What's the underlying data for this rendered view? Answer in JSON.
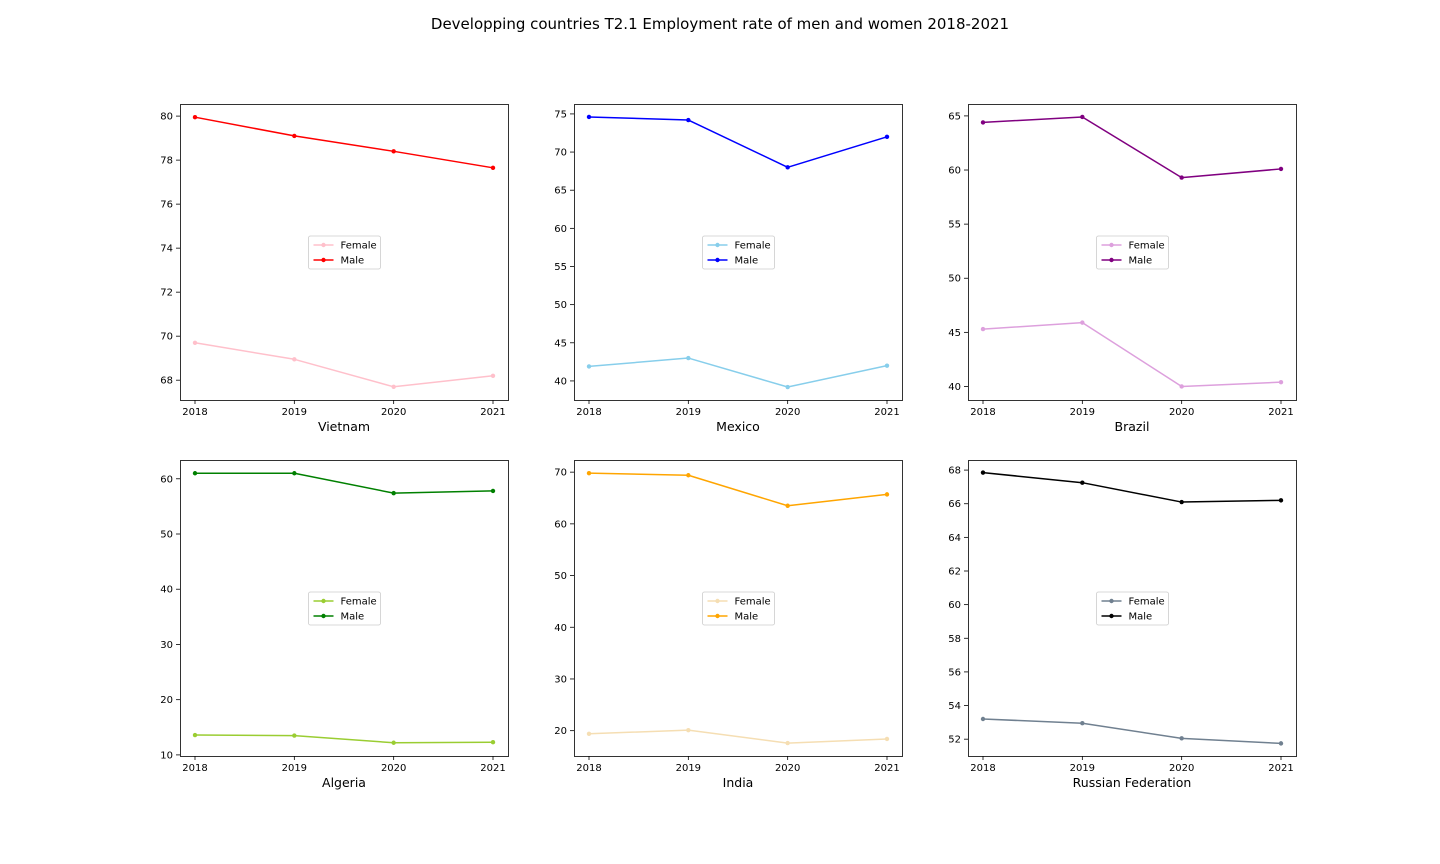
{
  "title": "Developping countries T2.1 Employment rate of men and women 2018-2021",
  "chart_data": [
    {
      "type": "line",
      "xlabel": "Vietnam",
      "x": [
        "2018",
        "2019",
        "2020",
        "2021"
      ],
      "series": [
        {
          "name": "Female",
          "color": "#ffc0cb",
          "values": [
            69.7,
            68.95,
            67.7,
            68.2
          ]
        },
        {
          "name": "Male",
          "color": "#ff0000",
          "values": [
            79.95,
            79.1,
            78.4,
            77.65
          ]
        }
      ],
      "yticks": [
        68,
        70,
        72,
        74,
        76,
        78,
        80
      ],
      "ylim": [
        67.1,
        80.55
      ],
      "legend": "center",
      "grid": false
    },
    {
      "type": "line",
      "xlabel": "Mexico",
      "x": [
        "2018",
        "2019",
        "2020",
        "2021"
      ],
      "series": [
        {
          "name": "Female",
          "color": "#87ceeb",
          "values": [
            41.9,
            43.0,
            39.2,
            42.0
          ]
        },
        {
          "name": "Male",
          "color": "#0000ff",
          "values": [
            74.6,
            74.2,
            68.0,
            72.0
          ]
        }
      ],
      "yticks": [
        40,
        45,
        50,
        55,
        60,
        65,
        70,
        75
      ],
      "ylim": [
        37.5,
        76.3
      ],
      "legend": "center",
      "grid": false
    },
    {
      "type": "line",
      "xlabel": "Brazil",
      "x": [
        "2018",
        "2019",
        "2020",
        "2021"
      ],
      "series": [
        {
          "name": "Female",
          "color": "#dda0dd",
          "values": [
            45.3,
            45.9,
            40.0,
            40.4
          ]
        },
        {
          "name": "Male",
          "color": "#800080",
          "values": [
            64.4,
            64.9,
            59.3,
            60.1
          ]
        }
      ],
      "yticks": [
        40,
        45,
        50,
        55,
        60,
        65
      ],
      "ylim": [
        38.75,
        66.1
      ],
      "legend": "center",
      "grid": false
    },
    {
      "type": "line",
      "xlabel": "Algeria",
      "x": [
        "2018",
        "2019",
        "2020",
        "2021"
      ],
      "series": [
        {
          "name": "Female",
          "color": "#9acd32",
          "values": [
            13.6,
            13.5,
            12.2,
            12.3
          ]
        },
        {
          "name": "Male",
          "color": "#008000",
          "values": [
            61.0,
            61.0,
            57.4,
            57.8
          ]
        }
      ],
      "yticks": [
        10,
        20,
        30,
        40,
        50,
        60
      ],
      "ylim": [
        9.8,
        63.4
      ],
      "legend": "center",
      "grid": false
    },
    {
      "type": "line",
      "xlabel": "India",
      "x": [
        "2018",
        "2019",
        "2020",
        "2021"
      ],
      "series": [
        {
          "name": "Female",
          "color": "#f5deb3",
          "values": [
            19.4,
            20.1,
            17.6,
            18.4
          ]
        },
        {
          "name": "Male",
          "color": "#ffa500",
          "values": [
            69.8,
            69.4,
            63.5,
            65.7
          ]
        }
      ],
      "yticks": [
        20,
        30,
        40,
        50,
        60,
        70
      ],
      "ylim": [
        15.1,
        72.35
      ],
      "legend": "center",
      "grid": false
    },
    {
      "type": "line",
      "xlabel": "Russian Federation",
      "x": [
        "2018",
        "2019",
        "2020",
        "2021"
      ],
      "series": [
        {
          "name": "Female",
          "color": "#708090",
          "values": [
            53.2,
            52.95,
            52.05,
            51.75
          ]
        },
        {
          "name": "Male",
          "color": "#000000",
          "values": [
            67.85,
            67.25,
            66.1,
            66.2
          ]
        }
      ],
      "yticks": [
        52,
        54,
        56,
        58,
        60,
        62,
        64,
        66,
        68
      ],
      "ylim": [
        51.0,
        68.6
      ],
      "legend": "center",
      "grid": false
    }
  ]
}
